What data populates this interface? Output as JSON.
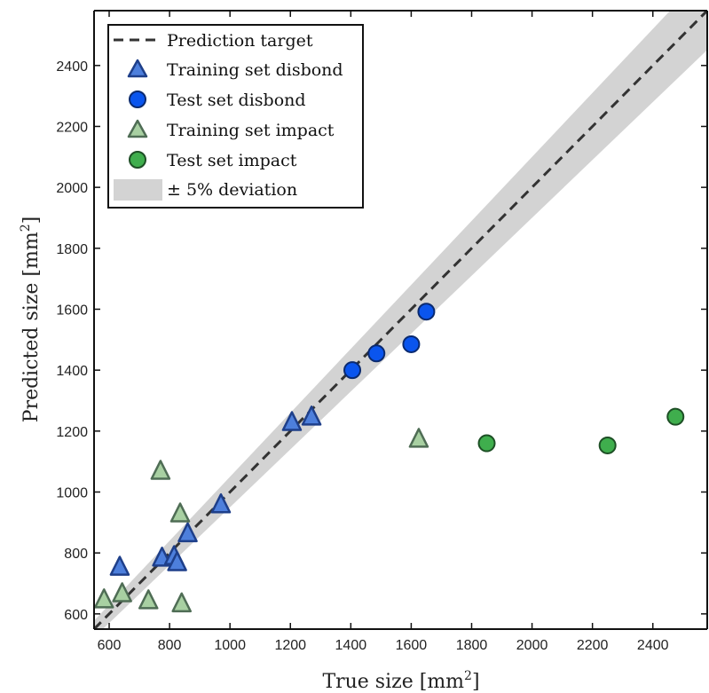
{
  "chart_data": {
    "type": "scatter",
    "xlabel": "True size [mm",
    "xlabel_sup": "2",
    "xlabel_end": "]",
    "ylabel": "Predicted size [mm",
    "ylabel_sup": "2",
    "ylabel_end": "]",
    "xlim": [
      550,
      2580
    ],
    "ylim": [
      550,
      2580
    ],
    "xticks": [
      600,
      800,
      1000,
      1200,
      1400,
      1600,
      1800,
      2000,
      2200,
      2400
    ],
    "yticks": [
      600,
      800,
      1000,
      1200,
      1400,
      1600,
      1800,
      2000,
      2200,
      2400
    ],
    "band_pct": 0.05,
    "legend_position": "top-left",
    "legend": {
      "target": "Prediction target",
      "training_disbond": "Training set disbond",
      "test_disbond": "Test set disbond",
      "training_impact": "Training set impact",
      "test_impact": "Test set impact",
      "band": "± 5% deviation"
    },
    "series": [
      {
        "name": "Training set disbond",
        "marker": "triangle",
        "fill": "#4d7fdc",
        "stroke": "#1e3f8a",
        "points": [
          [
            635,
            755
          ],
          [
            775,
            785
          ],
          [
            815,
            790
          ],
          [
            825,
            770
          ],
          [
            860,
            865
          ],
          [
            970,
            960
          ],
          [
            1205,
            1230
          ],
          [
            1270,
            1248
          ]
        ]
      },
      {
        "name": "Test set disbond",
        "marker": "circle",
        "fill": "#0a55ee",
        "stroke": "#0a2a70",
        "points": [
          [
            1405,
            1400
          ],
          [
            1485,
            1455
          ],
          [
            1600,
            1485
          ],
          [
            1650,
            1592
          ]
        ]
      },
      {
        "name": "Training set impact",
        "marker": "triangle",
        "fill": "#a8d0a2",
        "stroke": "#4f6d55",
        "points": [
          [
            583,
            648
          ],
          [
            643,
            668
          ],
          [
            730,
            645
          ],
          [
            770,
            1070
          ],
          [
            835,
            930
          ],
          [
            840,
            635
          ],
          [
            1625,
            1175
          ]
        ]
      },
      {
        "name": "Test set impact",
        "marker": "circle",
        "fill": "#3fae4d",
        "stroke": "#1d4f25",
        "points": [
          [
            1850,
            1160
          ],
          [
            2250,
            1153
          ],
          [
            2475,
            1247
          ]
        ]
      }
    ]
  },
  "colors": {
    "target_line": "#333333",
    "band": "#d3d3d3",
    "axis": "#111111"
  }
}
